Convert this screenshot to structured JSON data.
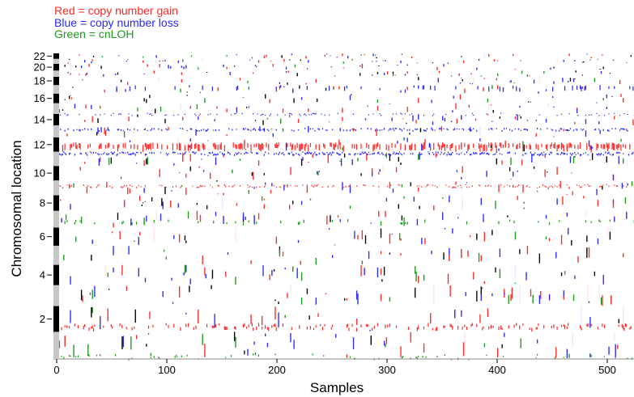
{
  "chart_data": {
    "type": "heatmap",
    "title": "",
    "xlabel": "Samples",
    "ylabel": "Chromosomal location",
    "xlim": [
      0,
      540
    ],
    "x_ticks": [
      0,
      100,
      200,
      300,
      400,
      500
    ],
    "y_tick_labels": [
      "22",
      "20",
      "18",
      "16",
      "14",
      "12",
      "10",
      "8",
      "6",
      "4",
      "2"
    ],
    "legend": {
      "placement": "top-left",
      "entries": [
        {
          "text": "Red = copy number gain",
          "color": "#ff2a2a"
        },
        {
          "text": "Blue = copy number loss",
          "color": "#2a2aff"
        },
        {
          "text": "Green = cnLOH",
          "color": "#1c9a1c"
        }
      ]
    },
    "chromosomes": [
      {
        "chr": 1,
        "size": 249
      },
      {
        "chr": 2,
        "size": 243
      },
      {
        "chr": 3,
        "size": 198
      },
      {
        "chr": 4,
        "size": 191
      },
      {
        "chr": 5,
        "size": 181
      },
      {
        "chr": 6,
        "size": 171
      },
      {
        "chr": 7,
        "size": 159
      },
      {
        "chr": 8,
        "size": 146
      },
      {
        "chr": 9,
        "size": 141
      },
      {
        "chr": 10,
        "size": 136
      },
      {
        "chr": 11,
        "size": 135
      },
      {
        "chr": 12,
        "size": 134
      },
      {
        "chr": 13,
        "size": 115
      },
      {
        "chr": 14,
        "size": 107
      },
      {
        "chr": 15,
        "size": 102
      },
      {
        "chr": 16,
        "size": 90
      },
      {
        "chr": 17,
        "size": 81
      },
      {
        "chr": 18,
        "size": 78
      },
      {
        "chr": 19,
        "size": 59
      },
      {
        "chr": 20,
        "size": 63
      },
      {
        "chr": 21,
        "size": 48
      },
      {
        "chr": 22,
        "size": 51
      }
    ],
    "colors": {
      "gain": "#ff2a2a",
      "loss": "#2a2aff",
      "cnloh": "#1c9a1c",
      "other": "#000000",
      "gain_faint": "#ffd0d0",
      "loss_faint": "#d4dcff"
    },
    "recurrent_bands": [
      {
        "chr": 12,
        "start": 0.05,
        "end": 0.55,
        "type": "gain",
        "frequency": 0.42
      },
      {
        "chr": 11,
        "start": 0.78,
        "end": 0.92,
        "type": "loss",
        "frequency": 0.55
      },
      {
        "chr": 13,
        "start": 0.55,
        "end": 0.7,
        "type": "loss",
        "frequency": 0.35
      },
      {
        "chr": 9,
        "start": 0.55,
        "end": 0.65,
        "type": "gain",
        "frequency": 0.3
      },
      {
        "chr": 2,
        "start": 0.1,
        "end": 0.25,
        "type": "gain",
        "frequency": 0.28
      },
      {
        "chr": 14,
        "start": 0.9,
        "end": 1.0,
        "type": "loss",
        "frequency": 0.2
      },
      {
        "chr": 7,
        "start": 0.2,
        "end": 0.4,
        "type": "cnloh",
        "frequency": 0.08
      },
      {
        "chr": 1,
        "start": 0.0,
        "end": 0.08,
        "type": "cnloh",
        "frequency": 0.1
      },
      {
        "chr": 17,
        "start": 0.3,
        "end": 0.9,
        "type": "loss",
        "frequency": 0.08
      }
    ]
  }
}
